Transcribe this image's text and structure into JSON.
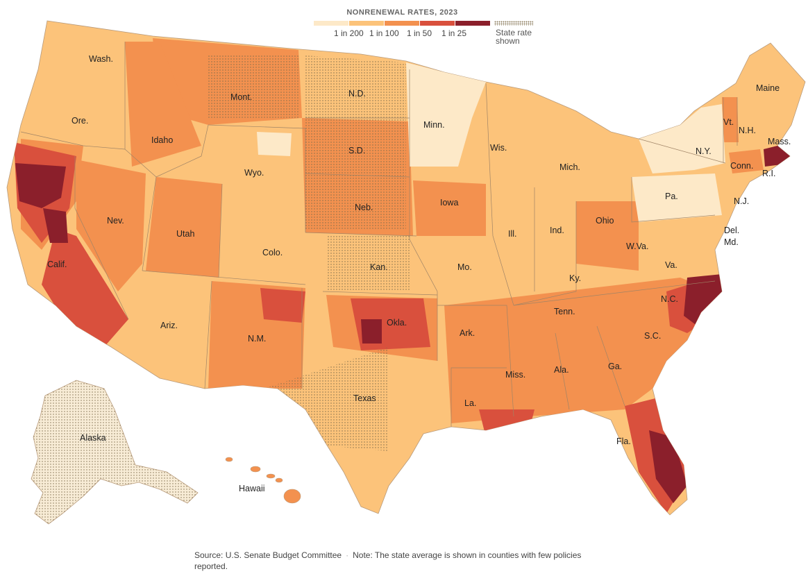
{
  "legend": {
    "title": "NONRENEWAL RATES, 2023",
    "bins": [
      {
        "label": "1 in 200",
        "color": "#fde9c8"
      },
      {
        "label": "1 in 100",
        "color": "#fcc37a"
      },
      {
        "label": "1 in 50",
        "color": "#f3914f"
      },
      {
        "label": "1 in 25",
        "color": "#d9503d"
      },
      {
        "label": "",
        "color": "#8b1f2b"
      }
    ],
    "state_rate_label_1": "State rate",
    "state_rate_label_2": "shown"
  },
  "state_labels": {
    "wash": "Wash.",
    "ore": "Ore.",
    "calif": "Calif.",
    "idaho": "Idaho",
    "nev": "Nev.",
    "mont": "Mont.",
    "wyo": "Wyo.",
    "utah": "Utah",
    "ariz": "Ariz.",
    "colo": "Colo.",
    "nm": "N.M.",
    "nd": "N.D.",
    "sd": "S.D.",
    "neb": "Neb.",
    "kan": "Kan.",
    "okla": "Okla.",
    "texas": "Texas",
    "minn": "Minn.",
    "iowa": "Iowa",
    "mo": "Mo.",
    "ark": "Ark.",
    "la": "La.",
    "wis": "Wis.",
    "ill": "Ill.",
    "mich": "Mich.",
    "ind": "Ind.",
    "ohio": "Ohio",
    "ky": "Ky.",
    "tenn": "Tenn.",
    "miss": "Miss.",
    "ala": "Ala.",
    "ga": "Ga.",
    "fla": "Fla.",
    "sc": "S.C.",
    "nc": "N.C.",
    "va": "Va.",
    "wva": "W.Va.",
    "pa": "Pa.",
    "ny": "N.Y.",
    "vt": "Vt.",
    "nh": "N.H.",
    "maine": "Maine",
    "mass": "Mass.",
    "conn": "Conn.",
    "ri": "R.I.",
    "nj": "N.J.",
    "del": "Del.",
    "md": "Md.",
    "alaska": "Alaska",
    "hawaii": "Hawaii"
  },
  "footer": {
    "source": "Source: U.S. Senate Budget Committee",
    "note": "Note: The state average is shown in counties with few policies reported."
  },
  "colors": {
    "lightest": "#fde9c8",
    "light": "#fcc37a",
    "mid": "#f3914f",
    "high": "#d9503d",
    "highest": "#8b1f2b",
    "alaska_fill": "#f8ecd6"
  }
}
